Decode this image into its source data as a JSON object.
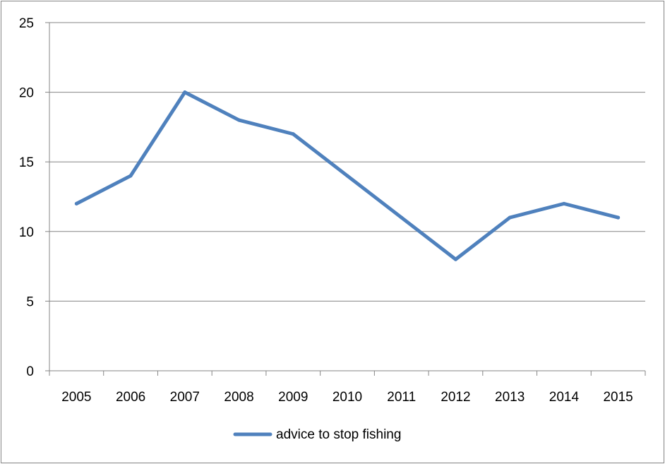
{
  "chart_data": {
    "type": "line",
    "title": "",
    "xlabel": "",
    "ylabel": "",
    "categories": [
      "2005",
      "2006",
      "2007",
      "2008",
      "2009",
      "2010",
      "2011",
      "2012",
      "2013",
      "2014",
      "2015"
    ],
    "series": [
      {
        "name": "advice to stop fishing",
        "values": [
          12,
          14,
          20,
          18,
          17,
          14,
          11,
          8,
          11,
          12,
          11
        ],
        "color": "#4f81bd"
      }
    ],
    "ylim": [
      0,
      25
    ],
    "y_ticks": [
      "0",
      "5",
      "10",
      "15",
      "20",
      "25"
    ],
    "grid": "horizontal major gridlines",
    "legend_position": "bottom"
  }
}
